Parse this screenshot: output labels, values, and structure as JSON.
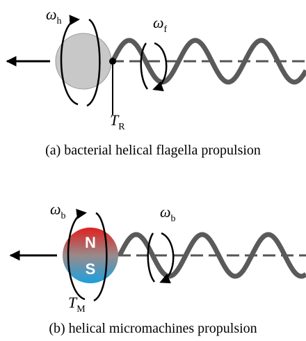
{
  "panels": [
    {
      "labels": [
        {
          "symbol": "ω",
          "subscript": "h"
        },
        {
          "symbol": "ω",
          "subscript": "f"
        },
        {
          "symbol": "T",
          "subscript": "R"
        }
      ],
      "caption": "(a) bacterial helical flagella propulsion"
    },
    {
      "labels": [
        {
          "symbol": "ω",
          "subscript": "b"
        },
        {
          "symbol": "ω",
          "subscript": "b"
        },
        {
          "symbol": "T",
          "subscript": "M"
        }
      ],
      "magnet": {
        "north": "N",
        "south": "S"
      },
      "caption": "(b) helical micromachines propulsion"
    }
  ]
}
